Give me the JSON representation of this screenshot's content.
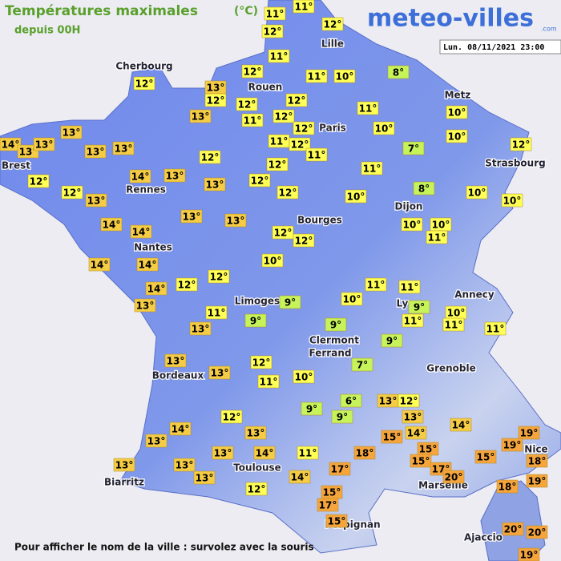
{
  "header": {
    "title": "Températures maximales",
    "unit": "(°C)",
    "subtitle": "depuis 00H",
    "logo": "meteo-villes",
    "logo_suffix": ".com",
    "timestamp": "Lun. 08/11/2021 23:00"
  },
  "cities": [
    "Lille",
    "Cherbourg",
    "Rouen",
    "Paris",
    "Metz",
    "Strasbourg",
    "Brest",
    "Rennes",
    "Dijon",
    "Bourges",
    "Nantes",
    "Limoges",
    "Annecy",
    "Ly",
    "Clermont",
    "Ferrand",
    "Grenoble",
    "Bordeaux",
    "Nice",
    "Toulouse",
    "Marseille",
    "Biarritz",
    "Perpignan",
    "Ajaccio"
  ],
  "temperatures": [
    "11°",
    "11°",
    "12°",
    "12°",
    "11°",
    "12°",
    "12°",
    "13°",
    "12°",
    "11°",
    "10°",
    "8°",
    "12°",
    "12°",
    "13°",
    "11°",
    "12°",
    "12°",
    "11°",
    "10°",
    "10°",
    "13°",
    "14°",
    "13°",
    "13°",
    "13°",
    "13°",
    "11°",
    "12°",
    "11°",
    "10°",
    "7°",
    "12°",
    "12°",
    "12°",
    "11°",
    "12°",
    "14°",
    "13°",
    "13°",
    "12°",
    "12°",
    "13°",
    "12°",
    "10°",
    "8°",
    "10°",
    "10°",
    "13°",
    "13°",
    "14°",
    "14°",
    "12°",
    "12°",
    "10°",
    "10°",
    "11°",
    "14°",
    "14°",
    "10°",
    "12°",
    "12°",
    "11°",
    "11°",
    "14°",
    "13°",
    "9°",
    "10°",
    "9°",
    "10°",
    "11°",
    "13°",
    "9°",
    "9°",
    "11°",
    "11°",
    "11°",
    "9°",
    "13°",
    "7°",
    "13°",
    "12°",
    "10°",
    "11°",
    "6°",
    "13°",
    "12°",
    "9°",
    "9°",
    "13°",
    "12°",
    "14°",
    "14°",
    "13°",
    "13°",
    "15°",
    "14°",
    "19°",
    "19°",
    "18°",
    "15°",
    "13°",
    "14°",
    "11°",
    "18°",
    "15°",
    "17°",
    "15°",
    "13°",
    "13°",
    "13°",
    "17°",
    "14°",
    "20°",
    "19°",
    "12°",
    "18°",
    "15°",
    "17°",
    "15°",
    "20°",
    "20°",
    "19°"
  ],
  "footer": "Pour afficher le nom de la ville : survolez avec la souris"
}
